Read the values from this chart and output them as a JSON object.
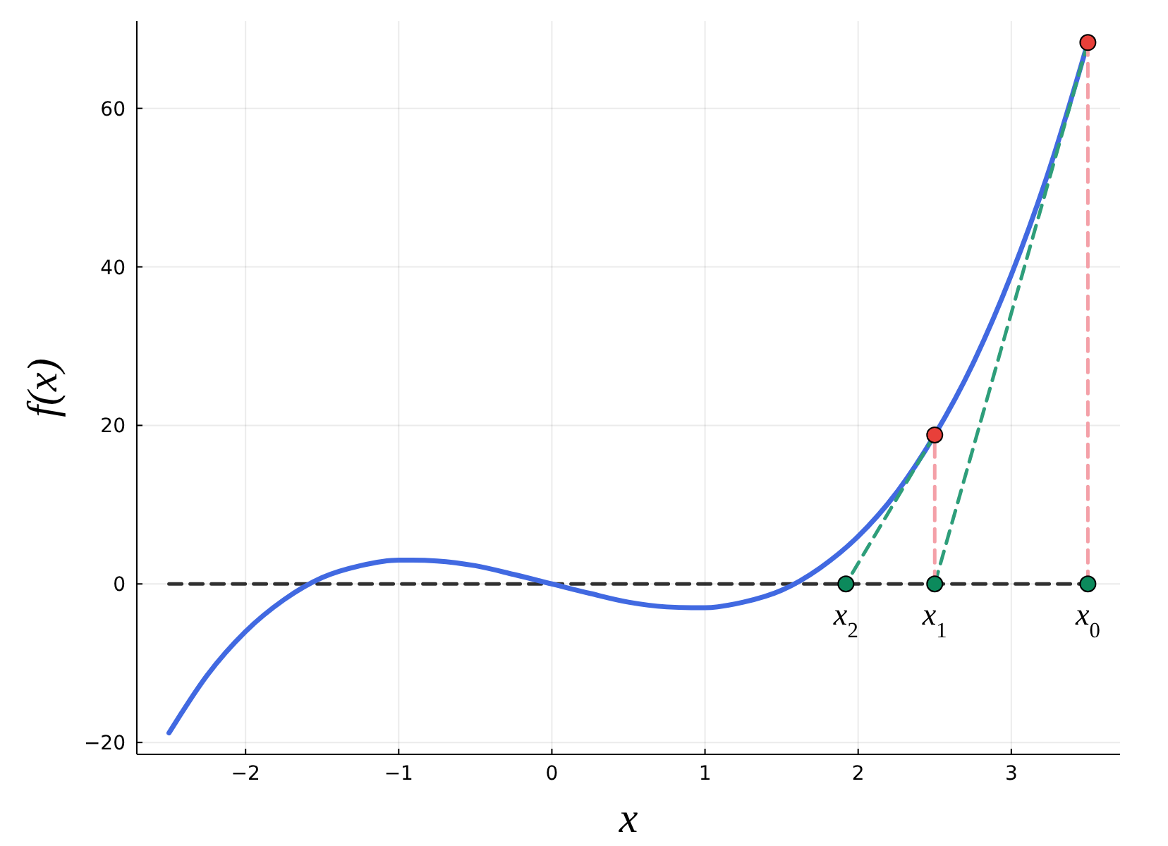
{
  "chart_data": {
    "type": "line",
    "xlabel": "x",
    "ylabel": "f(x)",
    "xlim": [
      -2.71,
      3.71
    ],
    "ylim": [
      -21.5,
      71
    ],
    "xticks": [
      {
        "value": -2,
        "label": "−2"
      },
      {
        "value": -1,
        "label": "−1"
      },
      0,
      1,
      2,
      3
    ],
    "yticks": [
      {
        "value": -20,
        "label": "−20"
      },
      0,
      20,
      40,
      60
    ],
    "grid": true,
    "series": [
      {
        "color": "#000000",
        "line_style": "dashed",
        "marker": "none",
        "x": [
          -2.5,
          3.5
        ],
        "values": [
          0,
          0
        ]
      },
      {
        "color": "#4169e1",
        "line_style": "solid",
        "marker": "none",
        "x": [
          -2.5,
          -2.25,
          -2,
          -1.75,
          -1.5,
          -1.25,
          -1,
          -0.91,
          -0.75,
          -0.5,
          -0.25,
          0,
          0.25,
          0.5,
          0.75,
          0.91,
          1,
          1.25,
          1.5,
          1.75,
          2,
          2.25,
          2.5,
          2.75,
          3,
          3.25,
          3.5
        ],
        "values": [
          -18.8,
          -11.5,
          -6,
          -2,
          0.8,
          2.3,
          3,
          3,
          2.9,
          2.3,
          1.2,
          0,
          -1.2,
          -2.3,
          -2.9,
          -3,
          -3,
          -2.3,
          -0.8,
          2,
          6,
          11.5,
          18.8,
          27.8,
          39,
          52.4,
          68.3
        ]
      },
      {
        "color": "#2e9e7a",
        "line_style": "dashed",
        "marker": "none",
        "x": [
          3.5,
          2.5
        ],
        "values": [
          68.3,
          0
        ]
      },
      {
        "color": "#2e9e7a",
        "line_style": "dashed",
        "marker": "none",
        "x": [
          2.5,
          1.92
        ],
        "values": [
          18.8,
          0
        ]
      },
      {
        "color": "#f4a0a8",
        "line_style": "dashed",
        "marker": "none",
        "x": [
          3.5,
          3.5
        ],
        "values": [
          0,
          68.3
        ]
      },
      {
        "color": "#f4a0a8",
        "line_style": "dashed",
        "marker": "none",
        "x": [
          2.5,
          2.5
        ],
        "values": [
          0,
          18.8
        ]
      },
      {
        "type": "scatter",
        "color": "#e8403a",
        "marker": "circle",
        "x": [
          3.5,
          2.5
        ],
        "values": [
          68.3,
          18.8
        ]
      },
      {
        "type": "scatter",
        "color": "#0c8a5c",
        "marker": "circle",
        "x": [
          3.5,
          2.5,
          1.92
        ],
        "values": [
          0,
          0,
          0
        ]
      }
    ],
    "annotations": [
      {
        "text": "x$_{0}$",
        "x": 3.5,
        "y": 0
      },
      {
        "text": "x$_{1}$",
        "x": 2.5,
        "y": 0
      },
      {
        "text": "x$_{2}$",
        "x": 1.92,
        "y": 0
      }
    ]
  }
}
